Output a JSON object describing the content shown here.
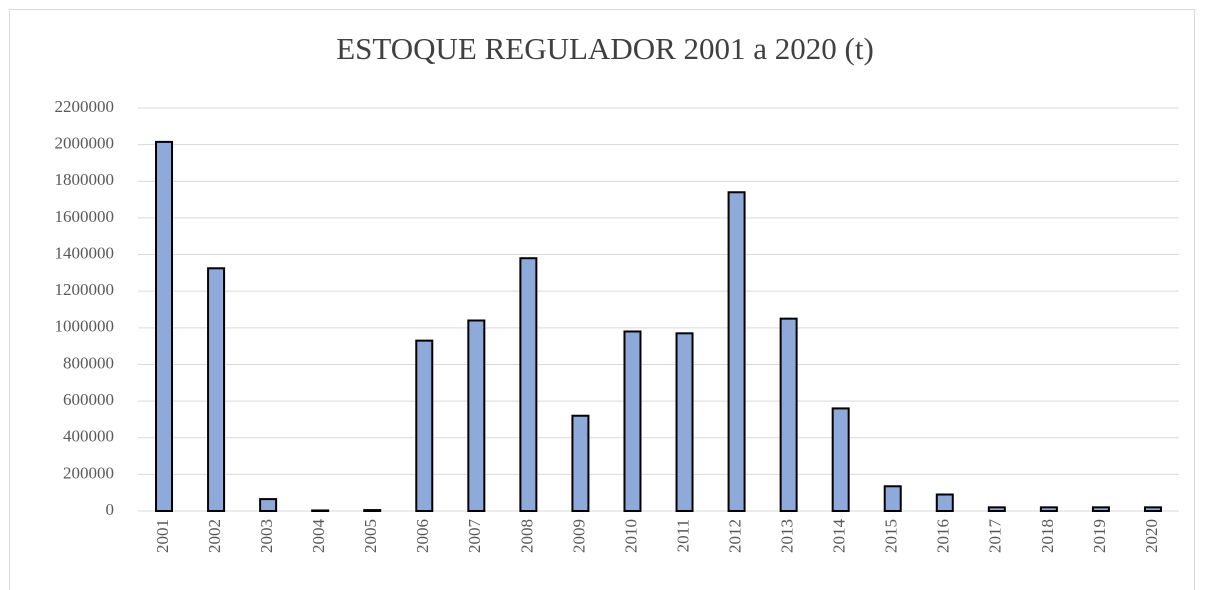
{
  "chart_data": {
    "type": "bar",
    "title": "ESTOQUE REGULADOR 2001 a 2020 (t)",
    "categories": [
      "2001",
      "2002",
      "2003",
      "2004",
      "2005",
      "2006",
      "2007",
      "2008",
      "2009",
      "2010",
      "2011",
      "2012",
      "2013",
      "2014",
      "2015",
      "2016",
      "2017",
      "2018",
      "2019",
      "2020"
    ],
    "values": [
      2015000,
      1325000,
      65000,
      3000,
      5000,
      930000,
      1040000,
      1380000,
      520000,
      980000,
      970000,
      1740000,
      1050000,
      560000,
      135000,
      90000,
      20000,
      20000,
      20000,
      20000
    ],
    "color": "#8eaadb",
    "ylim": [
      0,
      2200000
    ],
    "yticks": [
      0,
      200000,
      400000,
      600000,
      800000,
      1000000,
      1200000,
      1400000,
      1600000,
      1800000,
      2000000,
      2200000
    ],
    "grid": true
  }
}
